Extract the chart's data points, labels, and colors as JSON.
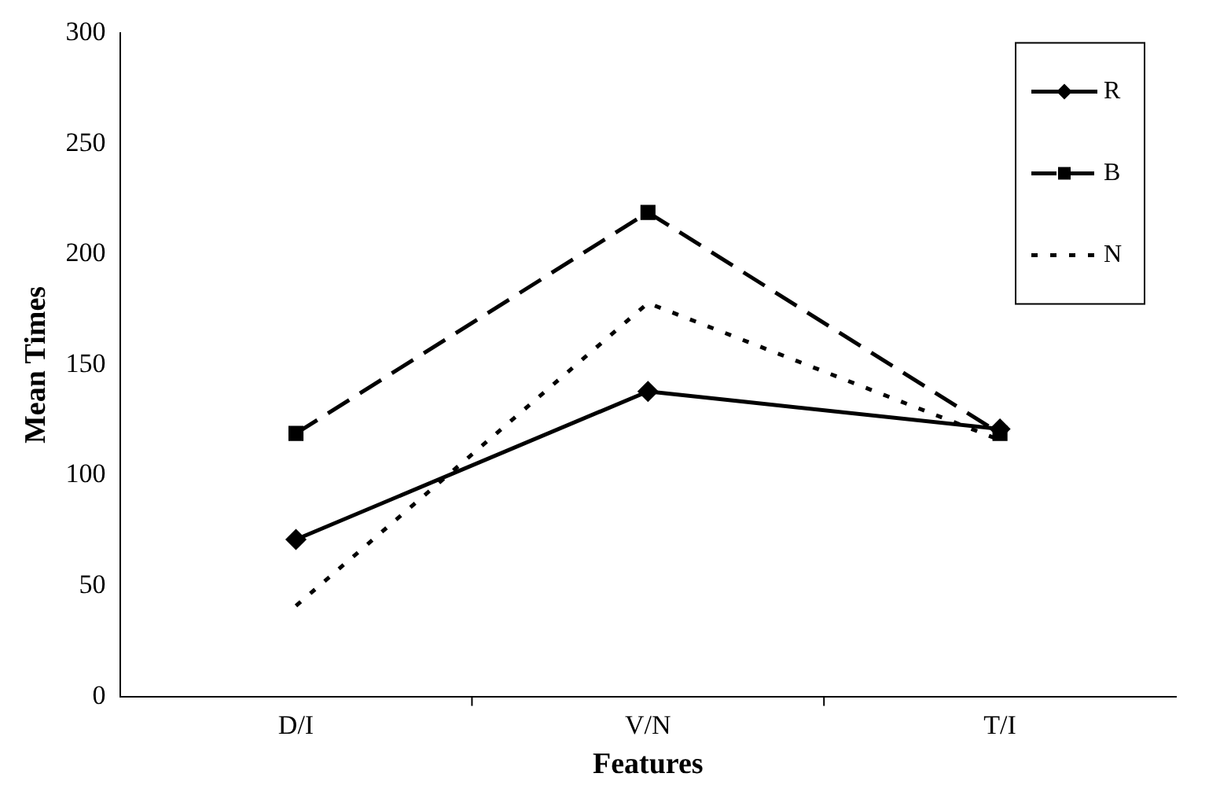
{
  "chart_data": {
    "type": "line",
    "xlabel": "Features",
    "ylabel": "Mean Times",
    "categories": [
      "D/I",
      "V/N",
      "T/I"
    ],
    "series": [
      {
        "name": "R",
        "color": "#000000",
        "values": [
          71,
          138,
          121
        ],
        "marker": "diamond",
        "line_style": "solid"
      },
      {
        "name": "B",
        "color": "#000000",
        "values": [
          119,
          219,
          119
        ],
        "marker": "square",
        "line_style": "dashed"
      },
      {
        "name": "N",
        "color": "#000000",
        "values": [
          41,
          178,
          116
        ],
        "marker": "none",
        "line_style": "dotted"
      }
    ],
    "ylim": [
      0,
      300
    ],
    "yticks": [
      0,
      50,
      100,
      150,
      200,
      250,
      300
    ],
    "grid": false,
    "legend": "top right"
  }
}
